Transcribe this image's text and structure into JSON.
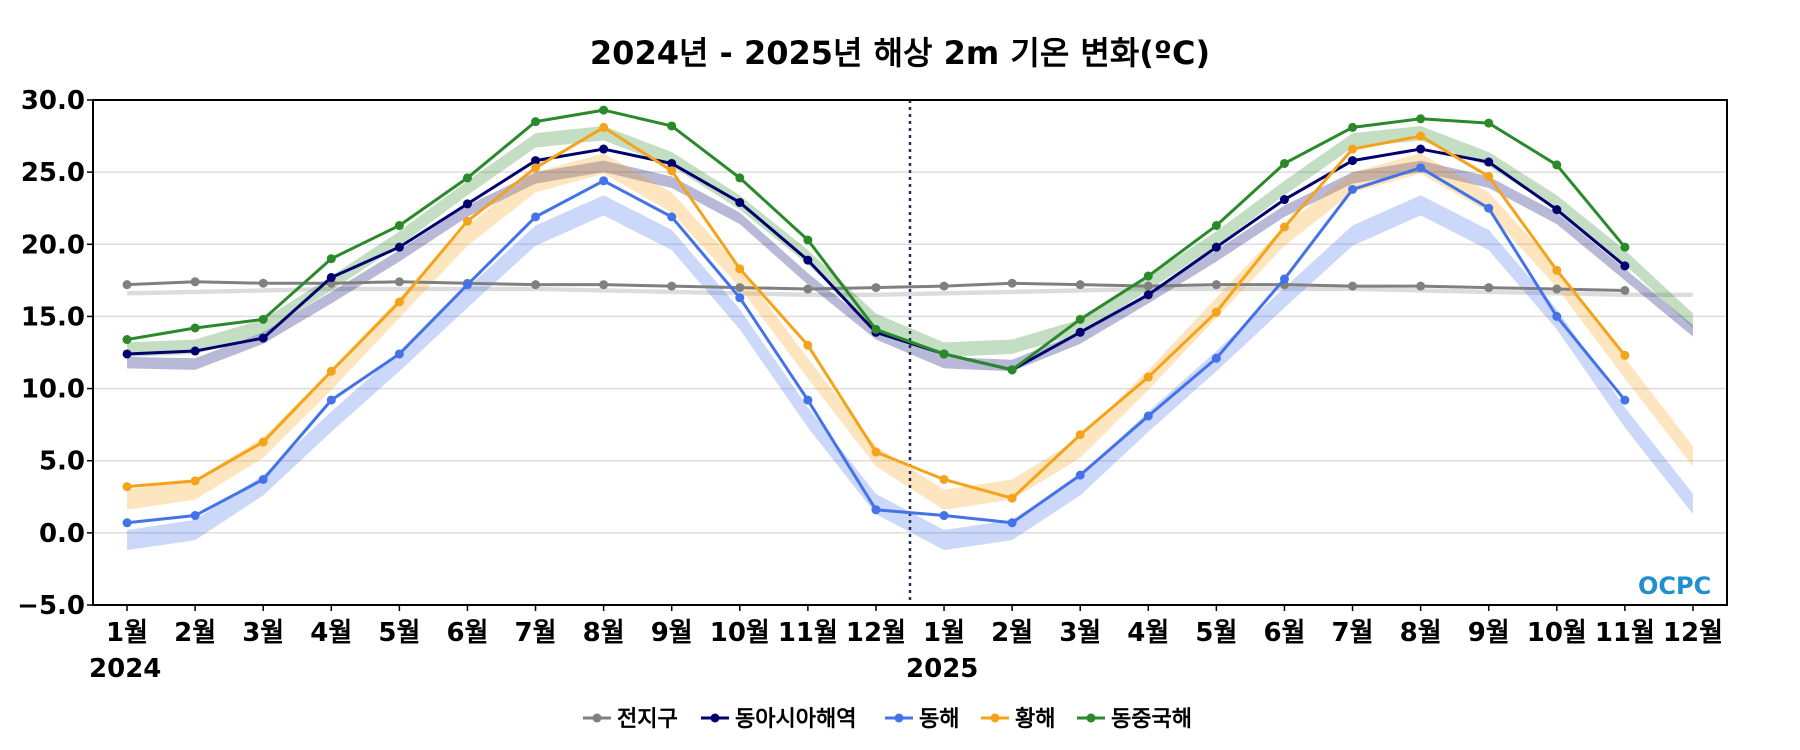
{
  "chart_data": {
    "type": "line",
    "title": "2024년 - 2025년 해상 2m 기온 변화(ºC)",
    "xlabel": "",
    "ylabel": "",
    "ylim": [
      -5,
      30
    ],
    "yticks": [
      "30.0",
      "25.0",
      "20.0",
      "15.0",
      "10.0",
      "5.0",
      "0.0",
      "−5.0"
    ],
    "ytick_values": [
      30,
      25,
      20,
      15,
      10,
      5,
      0,
      -5
    ],
    "categories": [
      "1월",
      "2월",
      "3월",
      "4월",
      "5월",
      "6월",
      "7월",
      "8월",
      "9월",
      "10월",
      "11월",
      "12월",
      "1월",
      "2월",
      "3월",
      "4월",
      "5월",
      "6월",
      "7월",
      "8월",
      "9월",
      "10월",
      "11월",
      "12월"
    ],
    "year_labels": [
      {
        "index": 0,
        "label": "2024"
      },
      {
        "index": 12,
        "label": "2025"
      }
    ],
    "divider_between_index": [
      11,
      12
    ],
    "grid": true,
    "legend_position": "bottom-center",
    "series": [
      {
        "name": "전지구",
        "color": "#808080",
        "values": [
          17.2,
          17.4,
          17.3,
          17.3,
          17.4,
          17.3,
          17.2,
          17.2,
          17.1,
          17.0,
          16.9,
          17.0,
          17.1,
          17.3,
          17.2,
          17.1,
          17.2,
          17.2,
          17.1,
          17.1,
          17.0,
          16.9,
          16.8,
          null
        ],
        "climatology": [
          16.6,
          16.7,
          16.8,
          16.9,
          16.9,
          16.9,
          16.9,
          16.8,
          16.7,
          16.6,
          16.5,
          16.5,
          16.6,
          16.7,
          16.8,
          16.9,
          16.9,
          16.9,
          16.9,
          16.8,
          16.7,
          16.6,
          16.5,
          16.5
        ],
        "clim_width": 0.3
      },
      {
        "name": "동아시아해역",
        "color": "#00006e",
        "values": [
          12.4,
          12.6,
          13.5,
          17.7,
          19.8,
          22.8,
          25.8,
          26.6,
          25.6,
          22.9,
          18.9,
          13.9,
          12.4,
          11.3,
          13.9,
          16.5,
          19.8,
          23.1,
          25.8,
          26.6,
          25.7,
          22.4,
          18.5,
          null
        ],
        "climatology": [
          11.8,
          11.7,
          13.5,
          16.3,
          19.2,
          22.3,
          24.6,
          25.4,
          24.3,
          21.8,
          17.6,
          13.8,
          11.8,
          11.6,
          13.5,
          16.3,
          19.2,
          22.3,
          24.6,
          25.4,
          24.3,
          21.8,
          17.9,
          14.0
        ],
        "clim_width": 0.8
      },
      {
        "name": "동해",
        "color": "#4472e8",
        "values": [
          0.7,
          1.2,
          3.7,
          9.2,
          12.4,
          17.2,
          21.9,
          24.4,
          21.9,
          16.3,
          9.2,
          1.6,
          1.2,
          0.7,
          4.0,
          8.1,
          12.1,
          17.6,
          23.8,
          25.3,
          22.5,
          15.0,
          9.2,
          null
        ],
        "climatology": [
          -0.5,
          0.2,
          3.3,
          7.7,
          11.9,
          16.3,
          20.6,
          22.7,
          20.3,
          14.8,
          8.0,
          2.0,
          -0.5,
          0.2,
          3.3,
          7.7,
          11.9,
          16.3,
          20.6,
          22.7,
          20.3,
          14.8,
          8.0,
          2.0
        ],
        "clim_width": 1.4
      },
      {
        "name": "황해",
        "color": "#f5a31a",
        "values": [
          3.2,
          3.6,
          6.3,
          11.2,
          16.0,
          21.6,
          25.3,
          28.1,
          25.1,
          18.3,
          13.0,
          5.6,
          3.7,
          2.4,
          6.8,
          10.8,
          15.3,
          21.2,
          26.6,
          27.5,
          24.7,
          18.2,
          12.3,
          null
        ],
        "climatology": [
          2.3,
          3.0,
          5.9,
          10.6,
          15.6,
          20.6,
          24.3,
          25.6,
          22.9,
          17.7,
          11.4,
          5.3,
          2.3,
          3.0,
          5.9,
          10.6,
          15.6,
          20.6,
          24.3,
          25.6,
          22.9,
          17.7,
          11.4,
          5.3
        ],
        "clim_width": 1.4
      },
      {
        "name": "동중국해",
        "color": "#2a8a2a",
        "values": [
          13.4,
          14.2,
          14.8,
          19.0,
          21.3,
          24.6,
          28.5,
          29.3,
          28.2,
          24.6,
          20.3,
          14.1,
          12.4,
          11.3,
          14.8,
          17.8,
          21.3,
          25.6,
          28.1,
          28.7,
          28.4,
          25.5,
          19.8,
          null
        ],
        "climatology": [
          12.7,
          12.9,
          14.3,
          17.3,
          20.4,
          23.9,
          27.2,
          27.7,
          25.9,
          22.9,
          19.1,
          14.7,
          12.7,
          12.9,
          14.3,
          17.3,
          20.4,
          23.9,
          27.2,
          27.7,
          25.9,
          22.9,
          19.1,
          14.7
        ],
        "clim_width": 1.0
      }
    ]
  },
  "logo": {
    "text": "OCPC"
  }
}
